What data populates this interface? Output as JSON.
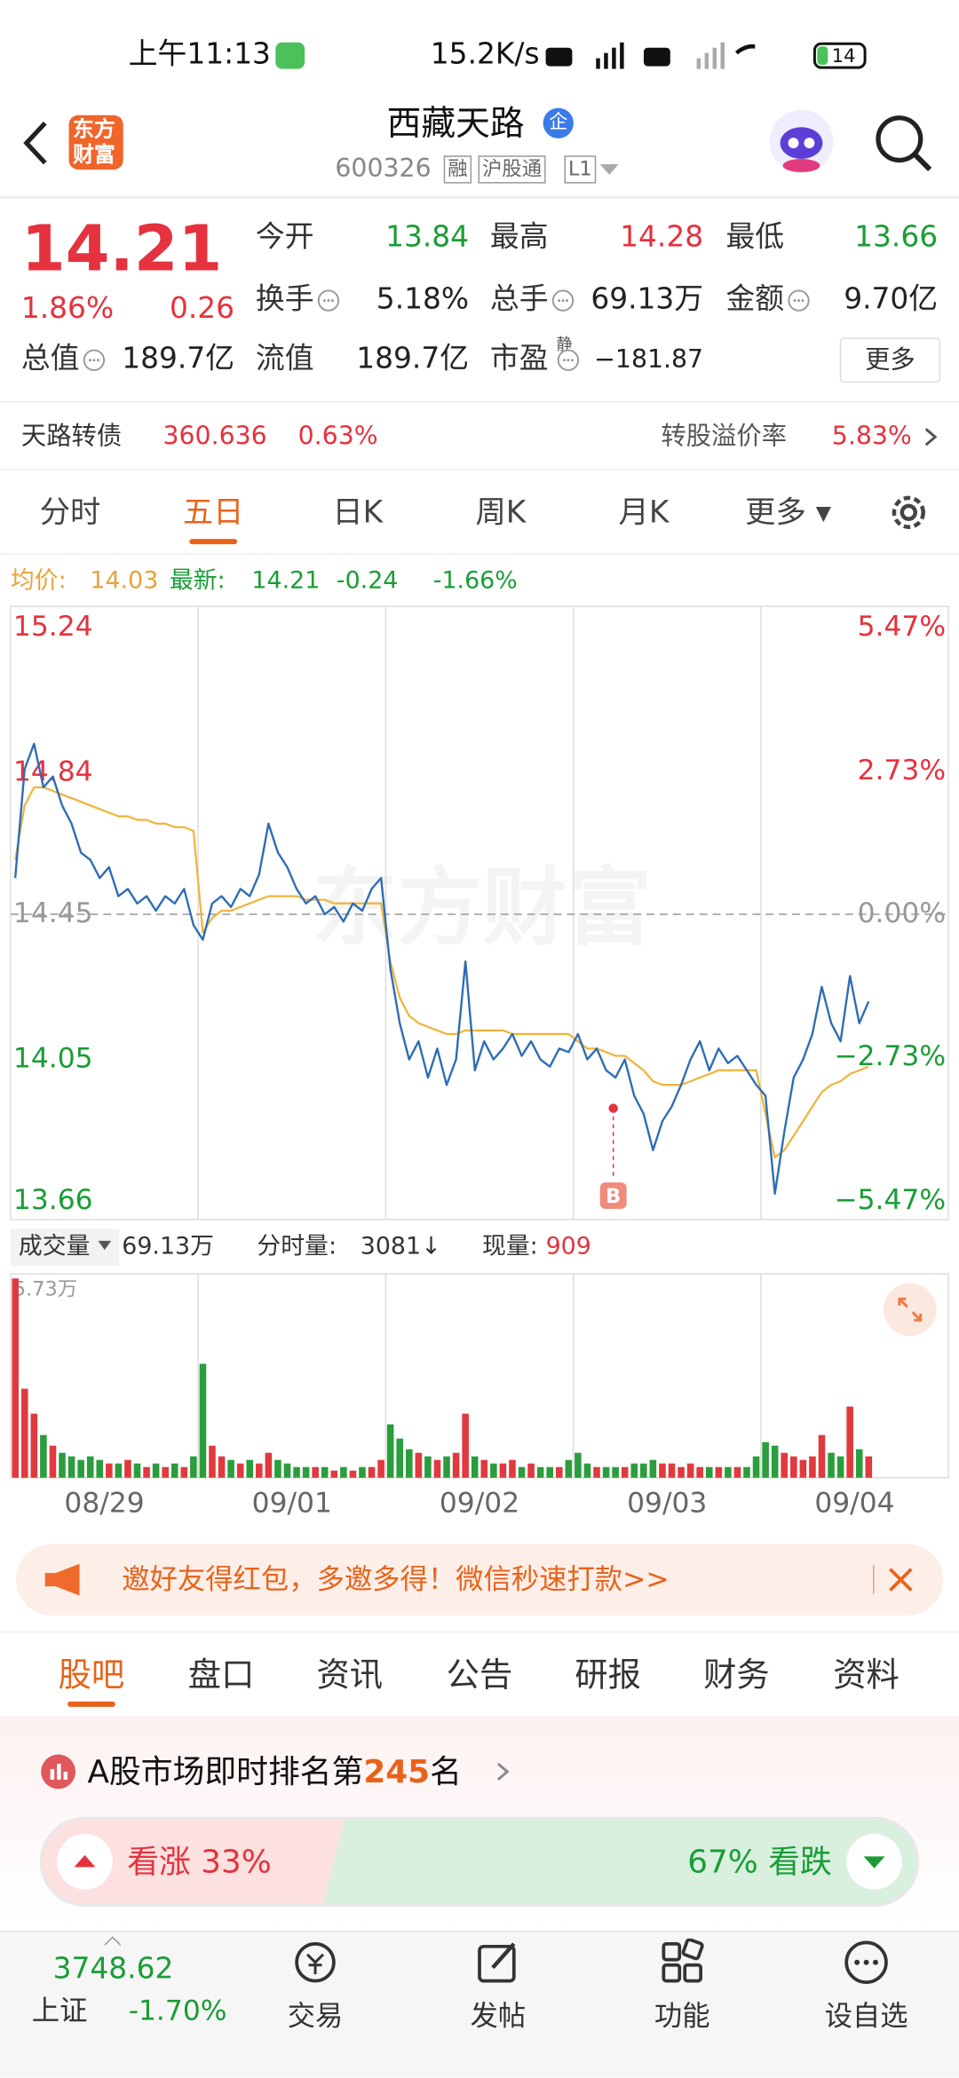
{
  "status_bar": {
    "time": "上午11:13",
    "speed": "15.2K/s",
    "battery": "14"
  },
  "header": {
    "title": "西藏天路",
    "badge": "企",
    "code": "600326",
    "tags": [
      "融",
      "沪股通",
      "L1"
    ],
    "logo": [
      "东方",
      "财富"
    ]
  },
  "quote": {
    "price": "14.21",
    "change_pct": "1.86%",
    "change": "0.26",
    "stats": [
      {
        "label": "今开",
        "value": "13.84"
      },
      {
        "label": "最高",
        "value": "14.28"
      },
      {
        "label": "最低",
        "value": "13.66"
      },
      {
        "label": "换手",
        "value": "5.18%"
      },
      {
        "label": "总手",
        "value": "69.13万"
      },
      {
        "label": "金额",
        "value": "9.70亿"
      },
      {
        "label": "总值",
        "value": "189.7亿"
      },
      {
        "label": "流值",
        "value": "189.7亿"
      },
      {
        "label": "市盈",
        "sup": "静",
        "value": "−181.87"
      }
    ],
    "more": "更多"
  },
  "bond": {
    "name": "天路转债",
    "price": "360.636",
    "pct": "0.63%",
    "premium_label": "转股溢价率",
    "premium": "5.83%"
  },
  "period_tabs": {
    "items": [
      "分时",
      "五日",
      "日K",
      "周K",
      "月K",
      "更多"
    ],
    "selected": 1
  },
  "chart_info": {
    "avg_label": "均价:",
    "avg": "14.03",
    "last_label": "最新:",
    "last": "14.21",
    "change": "-0.24",
    "pct": "-1.66%"
  },
  "watermark": "东方财富",
  "marker": "B",
  "chart_data": [
    {
      "type": "line",
      "ylim": [
        13.66,
        15.24
      ],
      "yticks": [
        15.24,
        14.84,
        14.45,
        14.05,
        13.66
      ],
      "baseline": 14.45,
      "y2lim": [
        -5.47,
        5.47
      ],
      "y2ticks": [
        {
          "value": 5.47,
          "label": "5.47%"
        },
        {
          "value": 2.73,
          "label": "2.73%"
        },
        {
          "value": 0,
          "label": "0.00%"
        },
        {
          "value": -2.73,
          "label": "−2.73%"
        },
        {
          "value": -5.47,
          "label": "−5.47%"
        }
      ],
      "grid": false,
      "series": [
        {
          "color": "#2f6db5",
          "values": [
            14.55,
            14.85,
            14.92,
            14.8,
            14.83,
            14.75,
            14.7,
            14.62,
            14.6,
            14.55,
            14.58,
            14.5,
            14.52,
            14.48,
            14.5,
            14.46,
            14.5,
            14.48,
            14.52,
            14.42,
            14.38,
            14.48,
            14.5,
            14.47,
            14.52,
            14.5,
            14.56,
            14.7,
            14.62,
            14.58,
            14.52,
            14.48,
            14.5,
            14.45,
            14.47,
            14.43,
            14.48,
            14.46,
            14.52,
            14.55,
            14.3,
            14.15,
            14.05,
            14.1,
            14.0,
            14.08,
            13.98,
            14.05,
            14.32,
            14.02,
            14.1,
            14.05,
            14.08,
            14.12,
            14.06,
            14.1,
            14.05,
            14.03,
            14.08,
            14.07,
            14.12,
            14.05,
            14.08,
            14.02,
            14.0,
            14.05,
            13.95,
            13.9,
            13.8,
            13.88,
            13.92,
            13.98,
            14.05,
            14.1,
            14.02,
            14.08,
            14.04,
            14.06,
            14.02,
            13.98,
            13.95,
            13.68,
            13.85,
            14.0,
            14.05,
            14.12,
            14.25,
            14.15,
            14.1,
            14.28,
            14.15,
            14.21,
            null,
            null,
            null,
            null,
            null,
            null,
            null,
            null
          ]
        },
        {
          "color": "#f0b43c",
          "values": [
            14.6,
            14.75,
            14.8,
            14.8,
            14.79,
            14.78,
            14.77,
            14.76,
            14.75,
            14.74,
            14.73,
            14.72,
            14.72,
            14.71,
            14.71,
            14.7,
            14.7,
            14.69,
            14.69,
            14.68,
            14.4,
            14.44,
            14.46,
            14.46,
            14.47,
            14.48,
            14.49,
            14.5,
            14.5,
            14.5,
            14.5,
            14.49,
            14.49,
            14.49,
            14.48,
            14.48,
            14.48,
            14.48,
            14.48,
            14.48,
            14.32,
            14.22,
            14.17,
            14.15,
            14.14,
            14.13,
            14.12,
            14.12,
            14.13,
            14.13,
            14.13,
            14.13,
            14.13,
            14.12,
            14.12,
            14.12,
            14.12,
            14.12,
            14.12,
            14.12,
            14.1,
            14.08,
            14.08,
            14.07,
            14.06,
            14.06,
            14.04,
            14.02,
            13.99,
            13.98,
            13.98,
            13.98,
            13.99,
            14.0,
            14.01,
            14.02,
            14.02,
            14.02,
            14.02,
            14.02,
            13.9,
            13.78,
            13.8,
            13.84,
            13.88,
            13.92,
            13.96,
            13.98,
            13.99,
            14.01,
            14.02,
            14.03,
            null,
            null,
            null,
            null,
            null,
            null,
            null,
            null
          ]
        }
      ]
    },
    {
      "type": "bar",
      "ylim": [
        0,
        5.73
      ],
      "yticks": [
        {
          "value": 5.73,
          "label": "5.73万"
        }
      ],
      "up_color": "#e0393e",
      "down_color": "#2a9d3c",
      "x_labels": [
        "08/29",
        "09/01",
        "09/02",
        "09/03",
        "09/04"
      ],
      "values": [
        5.6,
        2.5,
        1.8,
        1.2,
        0.9,
        0.7,
        0.6,
        0.5,
        0.6,
        0.5,
        0.4,
        0.4,
        0.5,
        0.4,
        0.3,
        0.4,
        0.3,
        0.4,
        0.3,
        0.6,
        3.2,
        0.9,
        0.6,
        0.5,
        0.4,
        0.5,
        0.4,
        0.7,
        0.5,
        0.4,
        0.3,
        0.3,
        0.3,
        0.3,
        0.2,
        0.3,
        0.2,
        0.3,
        0.3,
        0.5,
        1.5,
        1.1,
        0.8,
        0.7,
        0.6,
        0.5,
        0.6,
        0.7,
        1.8,
        0.6,
        0.5,
        0.4,
        0.4,
        0.5,
        0.3,
        0.4,
        0.3,
        0.3,
        0.3,
        0.5,
        0.7,
        0.4,
        0.3,
        0.3,
        0.3,
        0.3,
        0.4,
        0.4,
        0.5,
        0.4,
        0.4,
        0.3,
        0.4,
        0.3,
        0.3,
        0.3,
        0.3,
        0.3,
        0.3,
        0.6,
        1.0,
        0.9,
        0.7,
        0.6,
        0.5,
        0.6,
        1.2,
        0.7,
        0.6,
        2.0,
        0.8,
        0.6,
        null,
        null,
        null,
        null,
        null,
        null,
        null,
        null
      ]
    }
  ],
  "volume_info": {
    "label": "成交量",
    "total": "69.13万",
    "minute_label": "分时量:",
    "minute": "3081",
    "current_label": "现量:",
    "current": "909"
  },
  "banner": {
    "text": "邀好友得红包，多邀多得！微信秒速打款>>"
  },
  "section_tabs": {
    "items": [
      "股吧",
      "盘口",
      "资讯",
      "公告",
      "研报",
      "财务",
      "资料"
    ],
    "selected": 0
  },
  "rank": {
    "prefix": "A股市场即时排名第",
    "rank": "245",
    "suffix": "名"
  },
  "sentiment": {
    "bull_label": "看涨",
    "bull": {
      "value": 33,
      "label": "33%"
    },
    "bear_label": "看跌",
    "bear": {
      "value": 67,
      "label": "67%"
    }
  },
  "bottom_nav": {
    "index_value": "3748.62",
    "index_name": "上证",
    "index_pct": "-1.70%",
    "items": [
      "交易",
      "发帖",
      "功能",
      "设自选"
    ]
  }
}
